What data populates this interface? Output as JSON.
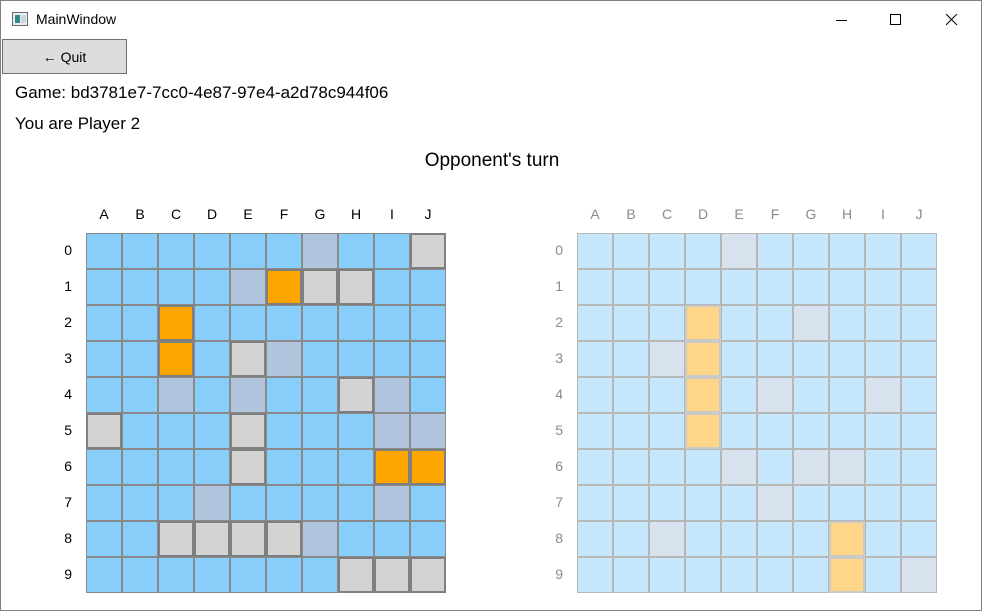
{
  "window": {
    "title": "MainWindow",
    "icon": "app-window-icon"
  },
  "toolbar": {
    "quit_label": "← Quit"
  },
  "game": {
    "id_text": "Game: bd3781e7-7cc0-4e87-97e4-a2d78c944f06",
    "player_text": "You are Player 2",
    "turn_text": "Opponent's turn"
  },
  "columns": [
    "A",
    "B",
    "C",
    "D",
    "E",
    "F",
    "G",
    "H",
    "I",
    "J"
  ],
  "rows": [
    "0",
    "1",
    "2",
    "3",
    "4",
    "5",
    "6",
    "7",
    "8",
    "9"
  ],
  "colors": {
    "water": "#87cefa",
    "miss_mark": "#b0c4de",
    "ship": "#d3d3d3",
    "hit": "#ffa500",
    "target_water": "#c5e6fb",
    "target_miss": "#d8e2ee",
    "target_hit": "#ffd588"
  },
  "own_board": [
    "......m..s",
    "....mhss..",
    "..h.......",
    "..h.sm....",
    "..m.m..sm.",
    "s...s...mm",
    "....s...hh",
    "...m....m.",
    "..ssssm...",
    ".......sss"
  ],
  "target_board": [
    "....m.....",
    "..........",
    "...h..m...",
    "..mh......",
    "...h.m..m.",
    "...h......",
    "....m.mm..",
    ".....m....",
    "..m....h..",
    ".......h.m"
  ]
}
